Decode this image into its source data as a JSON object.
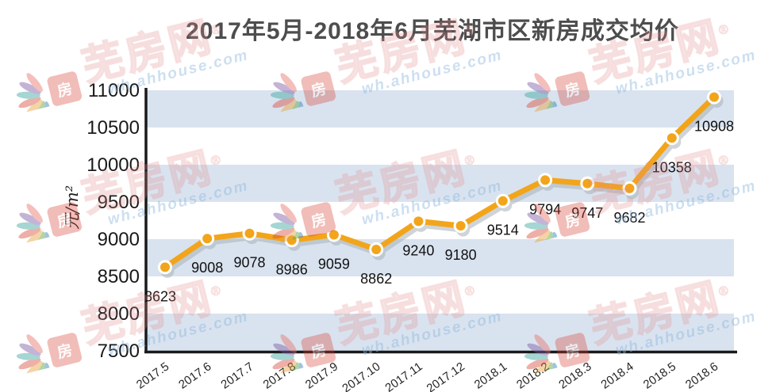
{
  "chart_data": {
    "type": "line",
    "title": "2017年5月-2018年6月芜湖市区新房成交均价",
    "ylabel": "元/m²",
    "xlabel": "",
    "categories": [
      "2017.5",
      "2017.6",
      "2017.7",
      "2017.8",
      "2017.9",
      "2017.10",
      "2017.11",
      "2017.12",
      "2018.1",
      "2018.2",
      "2018.3",
      "2018.4",
      "2018.5",
      "2018.6"
    ],
    "values": [
      8623,
      9008,
      9078,
      8986,
      9059,
      8862,
      9240,
      9180,
      9514,
      9794,
      9747,
      9682,
      10358,
      10908
    ],
    "data_labels_visible": true,
    "ylim": [
      7500,
      11000
    ],
    "y_ticks": [
      7500,
      8000,
      8500,
      9000,
      9500,
      10000,
      10500,
      11000
    ],
    "grid": "alternating-horizontal-bands",
    "legend_position": "none",
    "marker": "circle-orange-white-ring"
  },
  "colors": {
    "line": "#F2A51A",
    "marker_fill": "#F2A51A",
    "marker_ring": "#FFFFFF",
    "shadow": "#A9B2BA",
    "band": "#D9E3EF",
    "band_alt": "#FFFFFF",
    "axis": "#1A1A1A",
    "title_text": "#4D4D4D",
    "tick_text": "#1A1A1A",
    "data_label_text": "#111111"
  },
  "watermark": {
    "brand": "芜房网",
    "registered": "®",
    "url": "wh.ahhouse.com",
    "logo_glyph": "房",
    "icons": [
      "sparkle-icon",
      "brand-logo-icon"
    ]
  }
}
